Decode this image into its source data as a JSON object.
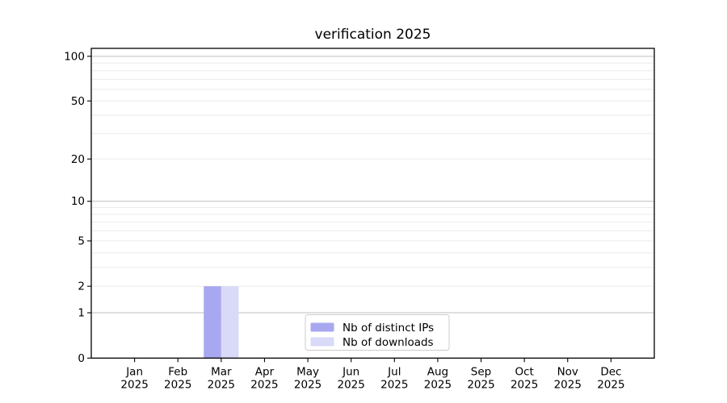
{
  "chart_data": {
    "type": "bar",
    "title": "verification 2025",
    "categories": [
      "Jan",
      "Feb",
      "Mar",
      "Apr",
      "May",
      "Jun",
      "Jul",
      "Aug",
      "Sep",
      "Oct",
      "Nov",
      "Dec"
    ],
    "x_year_label": "2025",
    "series": [
      {
        "name": "Nb of distinct IPs",
        "color": "#a8a8f0",
        "values": [
          0,
          0,
          2,
          0,
          0,
          0,
          0,
          0,
          0,
          0,
          0,
          0
        ]
      },
      {
        "name": "Nb of downloads",
        "color": "#d9d9f8",
        "values": [
          0,
          0,
          2,
          0,
          0,
          0,
          0,
          0,
          0,
          0,
          0,
          0
        ]
      }
    ],
    "y_axis": {
      "scale": "log1p",
      "ticks": [
        0,
        1,
        2,
        5,
        10,
        20,
        50,
        100
      ],
      "limits": [
        0,
        113
      ],
      "major_gridlines": [
        1,
        10,
        100
      ],
      "minor_gridlines": [
        2,
        3,
        4,
        5,
        6,
        7,
        8,
        9,
        20,
        30,
        40,
        50,
        60,
        70,
        80,
        90
      ]
    },
    "xlabel": "",
    "ylabel": "",
    "grid": true,
    "legend": {
      "position": "bottom-center"
    }
  },
  "colors": {
    "background": "#ffffff",
    "axis": "#000000",
    "grid_major": "#bdbdbd",
    "grid_minor": "#ebebeb",
    "legend_border": "#cccccc",
    "legend_background": "#ffffff",
    "text": "#000000"
  }
}
